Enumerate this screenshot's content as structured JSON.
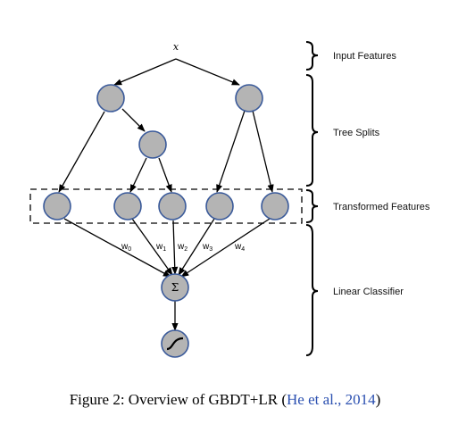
{
  "diagram": {
    "input_label": "x",
    "sum_symbol": "Σ",
    "sections": {
      "input": "Input Features",
      "tree_splits": "Tree Splits",
      "transformed": "Transformed Features",
      "linear": "Linear Classifier"
    },
    "weights": [
      {
        "base": "w",
        "sub": "0"
      },
      {
        "base": "w",
        "sub": "1"
      },
      {
        "base": "w",
        "sub": "2"
      },
      {
        "base": "w",
        "sub": "3"
      },
      {
        "base": "w",
        "sub": "4"
      }
    ],
    "colors": {
      "node_fill": "#b4b4b4",
      "node_stroke": "#3a5a9a",
      "citation": "#2a4fb0"
    }
  },
  "caption": {
    "text": "Figure 2: Overview of GBDT+LR (",
    "citation": "He et al., 2014",
    "close": ")"
  }
}
